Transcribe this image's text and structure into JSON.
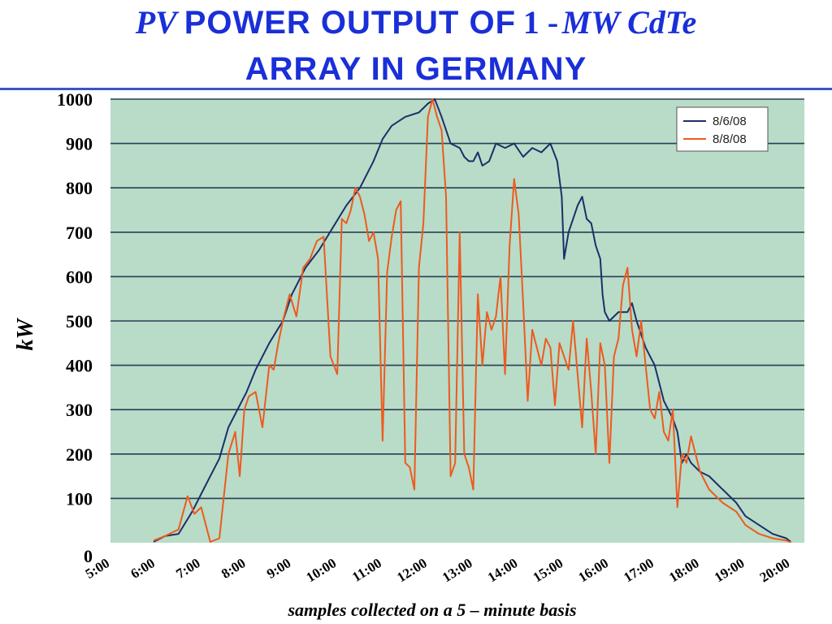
{
  "title": {
    "l1_a": "PV",
    "l1_b": "POWER OUTPUT OF",
    "l1_c": "1 -",
    "l1_d": "MW CdTe",
    "l2": "ARRAY IN GERMANY"
  },
  "chart_data": {
    "type": "line",
    "ylabel": "kW",
    "xlabel": "samples collected on a 5 – minute basis",
    "ylim": [
      0,
      1000
    ],
    "xlim": [
      5,
      20.3
    ],
    "yticks": [
      "0",
      "100",
      "200",
      "300",
      "400",
      "500",
      "600",
      "700",
      "800",
      "900",
      "1000"
    ],
    "xticks": [
      "5:00",
      "6:00",
      "7:00",
      "8:00",
      "9:00",
      "10:00",
      "11:00",
      "12:00",
      "13:00",
      "14:00",
      "15:00",
      "16:00",
      "17:00",
      "18:00",
      "19:00",
      "20:00"
    ],
    "grid": true,
    "legend_position": "top-right",
    "colors": {
      "plot_bg": "#b8dcc7",
      "grid": "#2a3d55",
      "series_1": "#1c2f6a",
      "series_2": "#ee5a1f"
    },
    "series": [
      {
        "name": "8/6/08",
        "x": [
          5.95,
          6.2,
          6.5,
          6.8,
          7.1,
          7.4,
          7.6,
          7.8,
          8.0,
          8.2,
          8.5,
          8.8,
          9.0,
          9.3,
          9.6,
          9.9,
          10.2,
          10.5,
          10.8,
          11.0,
          11.2,
          11.5,
          11.8,
          12.0,
          12.15,
          12.3,
          12.5,
          12.7,
          12.8,
          12.9,
          13.0,
          13.1,
          13.2,
          13.35,
          13.5,
          13.7,
          13.9,
          14.1,
          14.3,
          14.5,
          14.7,
          14.85,
          14.95,
          15.0,
          15.1,
          15.3,
          15.4,
          15.5,
          15.6,
          15.7,
          15.8,
          15.85,
          15.9,
          16.0,
          16.2,
          16.4,
          16.5,
          16.6,
          16.8,
          17.0,
          17.1,
          17.2,
          17.3,
          17.4,
          17.5,
          17.6,
          17.7,
          17.8,
          17.9,
          18.0,
          18.2,
          18.5,
          18.8,
          19.0,
          19.3,
          19.6,
          19.9,
          20.0
        ],
        "values": [
          2,
          15,
          20,
          70,
          130,
          190,
          260,
          300,
          340,
          390,
          450,
          500,
          560,
          620,
          660,
          710,
          760,
          800,
          860,
          910,
          940,
          960,
          970,
          990,
          1000,
          960,
          900,
          890,
          870,
          860,
          860,
          880,
          850,
          860,
          900,
          890,
          900,
          870,
          890,
          880,
          900,
          860,
          780,
          640,
          700,
          760,
          780,
          730,
          720,
          670,
          640,
          560,
          520,
          500,
          520,
          520,
          540,
          500,
          440,
          400,
          360,
          320,
          300,
          280,
          250,
          180,
          200,
          180,
          170,
          160,
          150,
          120,
          90,
          60,
          40,
          20,
          10,
          2
        ]
      },
      {
        "name": "8/8/08",
        "x": [
          5.95,
          6.2,
          6.5,
          6.7,
          6.85,
          7.0,
          7.2,
          7.4,
          7.6,
          7.75,
          7.85,
          7.95,
          8.05,
          8.2,
          8.35,
          8.5,
          8.6,
          8.7,
          8.8,
          8.95,
          9.1,
          9.25,
          9.4,
          9.55,
          9.7,
          9.85,
          10.0,
          10.1,
          10.2,
          10.3,
          10.4,
          10.5,
          10.6,
          10.7,
          10.8,
          10.9,
          11.0,
          11.1,
          11.2,
          11.3,
          11.4,
          11.5,
          11.6,
          11.7,
          11.8,
          11.9,
          12.0,
          12.1,
          12.2,
          12.3,
          12.4,
          12.5,
          12.6,
          12.7,
          12.8,
          12.9,
          13.0,
          13.1,
          13.2,
          13.3,
          13.4,
          13.5,
          13.6,
          13.7,
          13.8,
          13.9,
          14.0,
          14.1,
          14.2,
          14.3,
          14.4,
          14.5,
          14.6,
          14.7,
          14.8,
          14.9,
          15.0,
          15.1,
          15.2,
          15.3,
          15.4,
          15.5,
          15.6,
          15.7,
          15.8,
          15.9,
          16.0,
          16.1,
          16.2,
          16.3,
          16.4,
          16.5,
          16.6,
          16.7,
          16.8,
          16.9,
          17.0,
          17.1,
          17.2,
          17.3,
          17.4,
          17.5,
          17.6,
          17.7,
          17.8,
          17.9,
          18.0,
          18.2,
          18.5,
          18.8,
          19.0,
          19.3,
          19.6,
          19.9,
          20.0
        ],
        "values": [
          5,
          15,
          30,
          105,
          65,
          80,
          2,
          10,
          200,
          250,
          150,
          300,
          330,
          340,
          260,
          400,
          390,
          450,
          500,
          560,
          510,
          620,
          640,
          680,
          690,
          420,
          380,
          730,
          720,
          750,
          800,
          780,
          740,
          680,
          700,
          640,
          230,
          610,
          690,
          750,
          770,
          180,
          170,
          120,
          620,
          720,
          960,
          1000,
          960,
          930,
          780,
          150,
          180,
          700,
          200,
          170,
          120,
          560,
          400,
          520,
          480,
          510,
          600,
          380,
          670,
          820,
          740,
          540,
          320,
          480,
          440,
          400,
          460,
          440,
          310,
          450,
          420,
          390,
          500,
          380,
          260,
          460,
          340,
          200,
          450,
          400,
          180,
          420,
          460,
          580,
          620,
          480,
          420,
          500,
          400,
          300,
          280,
          340,
          250,
          230,
          300,
          80,
          200,
          180,
          240,
          200,
          160,
          120,
          90,
          70,
          40,
          20,
          10,
          5,
          1
        ]
      }
    ]
  }
}
